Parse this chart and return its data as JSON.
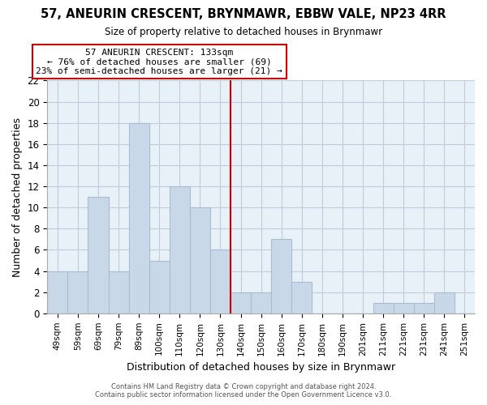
{
  "title": "57, ANEURIN CRESCENT, BRYNMAWR, EBBW VALE, NP23 4RR",
  "subtitle": "Size of property relative to detached houses in Brynmawr",
  "xlabel": "Distribution of detached houses by size in Brynmawr",
  "ylabel": "Number of detached properties",
  "bar_labels": [
    "49sqm",
    "59sqm",
    "69sqm",
    "79sqm",
    "89sqm",
    "100sqm",
    "110sqm",
    "120sqm",
    "130sqm",
    "140sqm",
    "150sqm",
    "160sqm",
    "170sqm",
    "180sqm",
    "190sqm",
    "201sqm",
    "211sqm",
    "221sqm",
    "231sqm",
    "241sqm",
    "251sqm"
  ],
  "bar_heights": [
    4,
    4,
    11,
    4,
    18,
    5,
    12,
    10,
    6,
    2,
    2,
    7,
    3,
    0,
    0,
    0,
    1,
    1,
    1,
    2,
    0
  ],
  "bar_color": "#c8d8e8",
  "bar_edge_color": "#aabcce",
  "plot_bg_color": "#e8f0f8",
  "grid_color": "#c0ccd8",
  "vline_x_index": 8.5,
  "vline_color": "#cc0000",
  "annotation_title": "57 ANEURIN CRESCENT: 133sqm",
  "annotation_line1": "← 76% of detached houses are smaller (69)",
  "annotation_line2": "23% of semi-detached houses are larger (21) →",
  "annotation_box_color": "#ffffff",
  "annotation_box_edge": "#cc0000",
  "ylim": [
    0,
    22
  ],
  "yticks": [
    0,
    2,
    4,
    6,
    8,
    10,
    12,
    14,
    16,
    18,
    20,
    22
  ],
  "footer1": "Contains HM Land Registry data © Crown copyright and database right 2024.",
  "footer2": "Contains public sector information licensed under the Open Government Licence v3.0."
}
